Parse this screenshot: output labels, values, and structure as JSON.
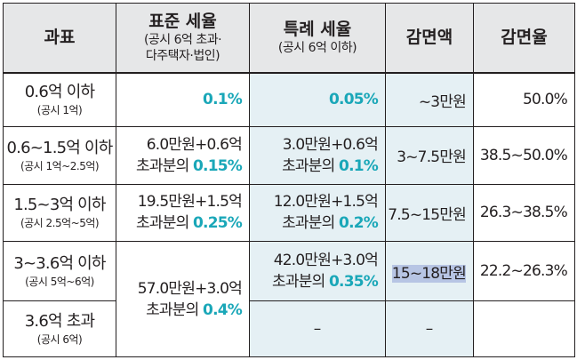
{
  "header": {
    "col_base": "과표",
    "col_std_title": "표준 세율",
    "col_std_sub1": "(공시 6억 초과·",
    "col_std_sub2": "다주택자·법인)",
    "col_special_title": "특례 세율",
    "col_special_sub": "(공시 6억 이하)",
    "col_reduction": "감면액",
    "col_reduction_rate": "감면율"
  },
  "rows": [
    {
      "base": "0.6억 이하",
      "base_note": "(공시 1억)",
      "std_rate_prefix": "",
      "std_rate_line2_prefix": "",
      "std_rate_highlight": "0.1%",
      "special_line1": "",
      "special_line2_prefix": "",
      "special_highlight": "0.05%",
      "reduction": "~3만원",
      "reduction_rate": "50.0%"
    },
    {
      "base": "0.6~1.5억 이하",
      "base_note": "(공시 1억~2.5억)",
      "std_rate_prefix": "6.0만원+0.6억",
      "std_rate_line2_prefix": "초과분의 ",
      "std_rate_highlight": "0.15%",
      "special_line1": "3.0만원+0.6억",
      "special_line2_prefix": "초과분의 ",
      "special_highlight": "0.1%",
      "reduction": "3~7.5만원",
      "reduction_rate": "38.5~50.0%"
    },
    {
      "base": "1.5~3억 이하",
      "base_note": "(공시 2.5억~5억)",
      "std_rate_prefix": "19.5만원+1.5억",
      "std_rate_line2_prefix": "초과분의 ",
      "std_rate_highlight": "0.25%",
      "special_line1": "12.0만원+1.5억",
      "special_line2_prefix": "초과분의 ",
      "special_highlight": "0.2%",
      "reduction": "7.5~15만원",
      "reduction_rate": "26.3~38.5%"
    },
    {
      "base": "3~3.6억 이하",
      "base_note": "(공시 5억~6억)",
      "std_rate_prefix": "57.0만원+3.0억",
      "std_rate_line2_prefix": "초과분의 ",
      "std_rate_highlight": "0.4%",
      "special_line1": "42.0만원+3.0억",
      "special_line2_prefix": "초과분의 ",
      "special_highlight": "0.35%",
      "reduction": "15~18만원",
      "reduction_rate": "22.2~26.3%"
    },
    {
      "base": "3.6억 초과",
      "base_note": "(공시 6억)",
      "special_dash": "–",
      "reduction_dash": "–"
    }
  ],
  "colors": {
    "header_bg": "#e6e7e8",
    "shaded_column_bg": "#e5f0f4",
    "highlight_text": "#1aa7b8",
    "selection_bg": "#b7c5e4"
  }
}
